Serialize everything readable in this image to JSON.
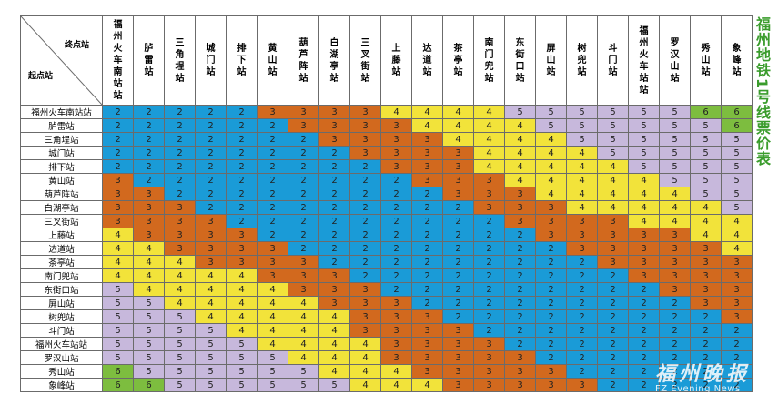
{
  "header": {
    "dest_label": "终点站",
    "origin_label": "起点站"
  },
  "side_title": "福州地铁1号线票价表",
  "watermark": {
    "cn": "福州晚报",
    "en": "FZ Evening News"
  },
  "colors": {
    "2": "#1a9bd7",
    "3": "#d2691e",
    "4": "#f2e33a",
    "5": "#c7b8dc",
    "6": "#7dbd3f"
  },
  "stations": [
    "福州火车南站站",
    "胪雷站",
    "三角埕站",
    "城门站",
    "排下站",
    "黄山站",
    "葫芦阵站",
    "白湖亭站",
    "三叉街站",
    "上藤站",
    "达道站",
    "茶亭站",
    "南门兜站",
    "东街口站",
    "屏山站",
    "树兜站",
    "斗门站",
    "福州火车站站",
    "罗汉山站",
    "秀山站",
    "象峰站"
  ],
  "fares": [
    [
      2,
      2,
      2,
      2,
      2,
      3,
      3,
      3,
      3,
      4,
      4,
      4,
      4,
      5,
      5,
      5,
      5,
      5,
      5,
      6,
      6
    ],
    [
      2,
      2,
      2,
      2,
      2,
      2,
      3,
      3,
      3,
      3,
      4,
      4,
      4,
      4,
      5,
      5,
      5,
      5,
      5,
      5,
      6
    ],
    [
      2,
      2,
      2,
      2,
      2,
      2,
      2,
      3,
      3,
      3,
      3,
      4,
      4,
      4,
      4,
      5,
      5,
      5,
      5,
      5,
      5
    ],
    [
      2,
      2,
      2,
      2,
      2,
      2,
      2,
      2,
      3,
      3,
      3,
      3,
      4,
      4,
      4,
      4,
      5,
      5,
      5,
      5,
      5
    ],
    [
      2,
      2,
      2,
      2,
      2,
      2,
      2,
      2,
      2,
      3,
      3,
      3,
      4,
      4,
      4,
      4,
      4,
      5,
      5,
      5,
      5
    ],
    [
      3,
      2,
      2,
      2,
      2,
      2,
      2,
      2,
      2,
      2,
      3,
      3,
      3,
      4,
      4,
      4,
      4,
      4,
      5,
      5,
      5
    ],
    [
      3,
      3,
      2,
      2,
      2,
      2,
      2,
      2,
      2,
      2,
      2,
      3,
      3,
      3,
      4,
      4,
      4,
      4,
      4,
      5,
      5
    ],
    [
      3,
      3,
      3,
      2,
      2,
      2,
      2,
      2,
      2,
      2,
      2,
      2,
      3,
      3,
      3,
      4,
      4,
      4,
      4,
      4,
      5
    ],
    [
      3,
      3,
      3,
      3,
      2,
      2,
      2,
      2,
      2,
      2,
      2,
      2,
      2,
      3,
      3,
      3,
      3,
      4,
      4,
      4,
      4
    ],
    [
      4,
      3,
      3,
      3,
      3,
      2,
      2,
      2,
      2,
      2,
      2,
      2,
      2,
      2,
      3,
      3,
      3,
      3,
      3,
      4,
      4
    ],
    [
      4,
      4,
      3,
      3,
      3,
      3,
      2,
      2,
      2,
      2,
      2,
      2,
      2,
      2,
      2,
      3,
      3,
      3,
      3,
      3,
      4
    ],
    [
      4,
      4,
      4,
      3,
      3,
      3,
      3,
      2,
      2,
      2,
      2,
      2,
      2,
      2,
      2,
      2,
      3,
      3,
      3,
      3,
      3
    ],
    [
      4,
      4,
      4,
      4,
      4,
      3,
      3,
      3,
      2,
      2,
      2,
      2,
      2,
      2,
      2,
      2,
      2,
      3,
      3,
      3,
      3
    ],
    [
      5,
      4,
      4,
      4,
      4,
      4,
      3,
      3,
      3,
      2,
      2,
      2,
      2,
      2,
      2,
      2,
      2,
      2,
      3,
      3,
      3
    ],
    [
      5,
      5,
      4,
      4,
      4,
      4,
      4,
      3,
      3,
      3,
      2,
      2,
      2,
      2,
      2,
      2,
      2,
      2,
      2,
      3,
      3
    ],
    [
      5,
      5,
      5,
      4,
      4,
      4,
      4,
      4,
      3,
      3,
      3,
      2,
      2,
      2,
      2,
      2,
      2,
      2,
      2,
      2,
      3
    ],
    [
      5,
      5,
      5,
      5,
      4,
      4,
      4,
      4,
      3,
      3,
      3,
      3,
      2,
      2,
      2,
      2,
      2,
      2,
      2,
      2,
      2
    ],
    [
      5,
      5,
      5,
      5,
      5,
      4,
      4,
      4,
      4,
      3,
      3,
      3,
      3,
      2,
      2,
      2,
      2,
      2,
      2,
      2,
      2
    ],
    [
      5,
      5,
      5,
      5,
      5,
      5,
      4,
      4,
      4,
      3,
      3,
      3,
      3,
      3,
      2,
      2,
      2,
      2,
      2,
      2,
      2
    ],
    [
      6,
      5,
      5,
      5,
      5,
      5,
      5,
      4,
      4,
      4,
      3,
      3,
      3,
      3,
      3,
      2,
      2,
      2,
      2,
      2,
      2
    ],
    [
      6,
      6,
      5,
      5,
      5,
      5,
      5,
      5,
      4,
      4,
      4,
      3,
      3,
      3,
      3,
      3,
      2,
      2,
      2,
      2,
      2
    ]
  ]
}
